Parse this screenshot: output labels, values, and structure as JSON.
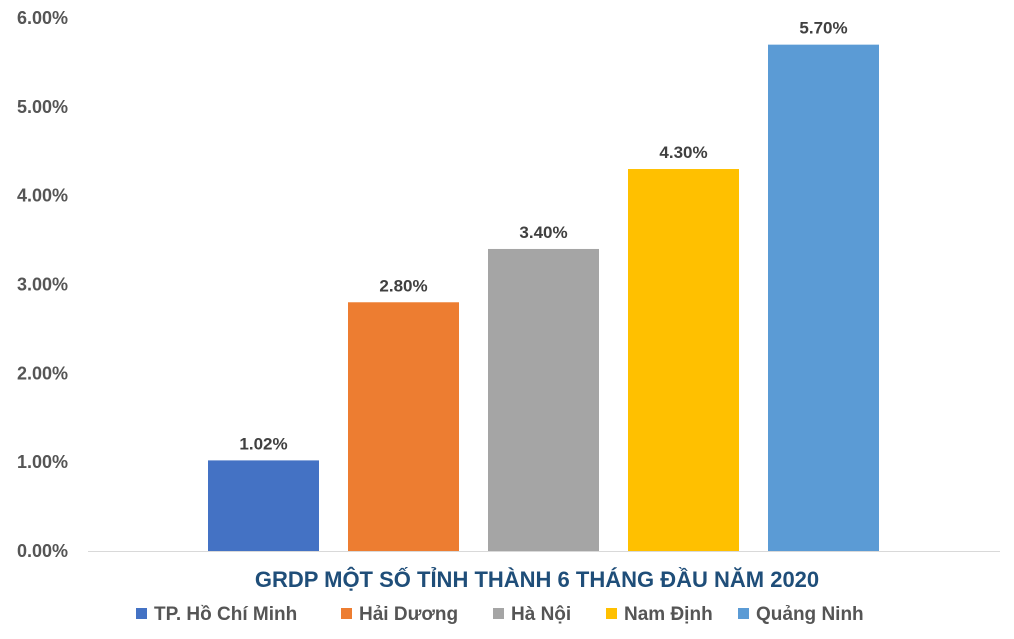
{
  "chart_data": {
    "type": "bar",
    "title": "GRDP MỘT SỐ TỈNH THÀNH 6 THÁNG ĐẦU NĂM 2020",
    "categories": [
      "TP. Hồ Chí Minh",
      "Hải Dương",
      "Hà Nội",
      "Nam Định",
      "Quảng Ninh"
    ],
    "values": [
      1.02,
      2.8,
      3.4,
      4.3,
      5.7
    ],
    "data_labels": [
      "1.02%",
      "2.80%",
      "3.40%",
      "4.30%",
      "5.70%"
    ],
    "colors": [
      "#4472c4",
      "#ed7d31",
      "#a5a5a5",
      "#ffc000",
      "#5b9bd5"
    ],
    "ylim": [
      0,
      6
    ],
    "yticks": [
      0,
      1,
      2,
      3,
      4,
      5,
      6
    ],
    "ytick_labels": [
      "0.00%",
      "1.00%",
      "2.00%",
      "3.00%",
      "4.00%",
      "5.00%",
      "6.00%"
    ],
    "xlabel": "",
    "ylabel": "",
    "grid": false,
    "legend": {
      "position": "bottom",
      "entries": [
        "TP. Hồ Chí Minh",
        "Hải Dương",
        "Hà Nội",
        "Nam Định",
        "Quảng Ninh"
      ]
    },
    "colors_axis": "#d9d9d9"
  }
}
